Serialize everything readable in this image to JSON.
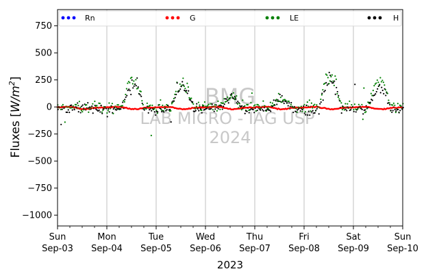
{
  "chart_data": {
    "type": "scatter",
    "ylabel_text": "Fluxes [",
    "ylabel_unit": "W/m",
    "ylabel_exp": "2",
    "ylabel_close": "]",
    "xlabel": "2023",
    "ylim": [
      -1100,
      900
    ],
    "yticks": [
      -1000,
      -750,
      -500,
      -250,
      0,
      250,
      500,
      750
    ],
    "ytick_labels": [
      "−1000",
      "−750",
      "−500",
      "−250",
      "0",
      "250",
      "500",
      "750"
    ],
    "xlim": [
      0,
      7
    ],
    "xticks": [
      {
        "x": 0,
        "day": "Sun",
        "date": "Sep-03"
      },
      {
        "x": 1,
        "day": "Mon",
        "date": "Sep-04"
      },
      {
        "x": 2,
        "day": "Tue",
        "date": "Sep-05"
      },
      {
        "x": 3,
        "day": "Wed",
        "date": "Sep-06"
      },
      {
        "x": 4,
        "day": "Thu",
        "date": "Sep-07"
      },
      {
        "x": 5,
        "day": "Fri",
        "date": "Sep-08"
      },
      {
        "x": 6,
        "day": "Sat",
        "date": "Sep-09"
      },
      {
        "x": 7,
        "day": "Sun",
        "date": "Sep-10"
      }
    ],
    "grid": "vertical",
    "legend_placement": "top",
    "series": [
      {
        "name": "Rn",
        "color": "#0000ff"
      },
      {
        "name": "G",
        "color": "#ff0000"
      },
      {
        "name": "LE",
        "color": "#008000"
      },
      {
        "name": "H",
        "color": "#000000"
      }
    ],
    "watermark": [
      "BMG",
      "LAB MICRO - IAG USP",
      "2024"
    ]
  }
}
